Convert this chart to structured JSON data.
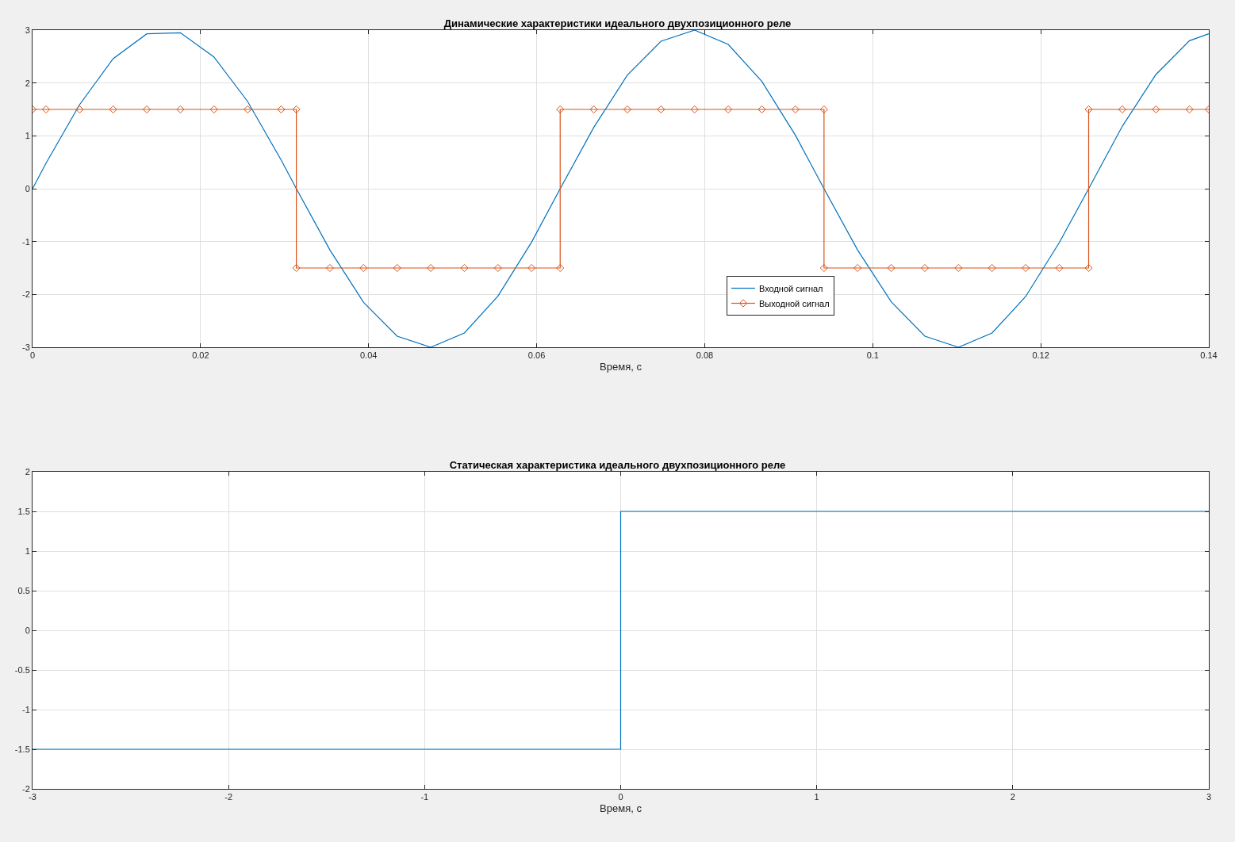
{
  "chart_data": [
    {
      "type": "line",
      "title": "Динамические характеристики идеального двухпозиционного реле",
      "xlabel": "Время, с",
      "xlim": [
        0,
        0.14
      ],
      "xticks": [
        0,
        0.02,
        0.04,
        0.06,
        0.08,
        0.1,
        0.12,
        0.14
      ],
      "ylim": [
        -3,
        3
      ],
      "yticks": [
        -3,
        -2,
        -1,
        0,
        1,
        2,
        3
      ],
      "grid": true,
      "legend": "bottom",
      "series": [
        {
          "name": "Входной сигнал",
          "color": "#0072bd",
          "marker": "none",
          "x": [
            0,
            0.0016,
            0.0056,
            0.0096,
            0.0136,
            0.0176,
            0.0216,
            0.0256,
            0.0296,
            0.0314,
            0.0354,
            0.0394,
            0.0434,
            0.0474,
            0.0514,
            0.0554,
            0.0594,
            0.0628,
            0.0668,
            0.0708,
            0.0748,
            0.0788,
            0.0828,
            0.0868,
            0.0908,
            0.0942,
            0.0982,
            0.1022,
            0.1062,
            0.1102,
            0.1142,
            0.1182,
            0.1222,
            0.1257,
            0.1297,
            0.1337,
            0.1377,
            0.14
          ],
          "values": [
            0,
            0.48,
            1.59,
            2.46,
            2.93,
            2.95,
            2.49,
            1.65,
            0.54,
            0,
            -1.16,
            -2.15,
            -2.79,
            -3,
            -2.73,
            -2.03,
            -1.01,
            0,
            1.16,
            2.15,
            2.79,
            3,
            2.73,
            2.03,
            1.01,
            0,
            -1.16,
            -2.14,
            -2.79,
            -3,
            -2.73,
            -2.04,
            -1.02,
            0,
            1.18,
            2.16,
            2.8,
            2.93
          ]
        },
        {
          "name": "Выходной сигнал",
          "color": "#d95319",
          "marker": "diamond",
          "x": [
            0,
            0.0016,
            0.0056,
            0.0096,
            0.0136,
            0.0176,
            0.0216,
            0.0256,
            0.0296,
            0.0314,
            0.0314,
            0.0354,
            0.0394,
            0.0434,
            0.0474,
            0.0514,
            0.0554,
            0.0594,
            0.0628,
            0.0628,
            0.0668,
            0.0708,
            0.0748,
            0.0788,
            0.0828,
            0.0868,
            0.0908,
            0.0942,
            0.0942,
            0.0982,
            0.1022,
            0.1062,
            0.1102,
            0.1142,
            0.1182,
            0.1222,
            0.1257,
            0.1257,
            0.1297,
            0.1337,
            0.1377,
            0.14
          ],
          "values": [
            1.5,
            1.5,
            1.5,
            1.5,
            1.5,
            1.5,
            1.5,
            1.5,
            1.5,
            1.5,
            -1.5,
            -1.5,
            -1.5,
            -1.5,
            -1.5,
            -1.5,
            -1.5,
            -1.5,
            -1.5,
            1.5,
            1.5,
            1.5,
            1.5,
            1.5,
            1.5,
            1.5,
            1.5,
            1.5,
            -1.5,
            -1.5,
            -1.5,
            -1.5,
            -1.5,
            -1.5,
            -1.5,
            -1.5,
            -1.5,
            1.5,
            1.5,
            1.5,
            1.5,
            1.5
          ]
        }
      ]
    },
    {
      "type": "line",
      "title": "Статическая характеристика идеального двухпозиционного реле",
      "xlabel": "Время, с",
      "xlim": [
        -3,
        3
      ],
      "xticks": [
        -3,
        -2,
        -1,
        0,
        1,
        2,
        3
      ],
      "ylim": [
        -2,
        2
      ],
      "yticks": [
        -2,
        -1.5,
        -1,
        -0.5,
        0,
        0.5,
        1,
        1.5,
        2
      ],
      "grid": true,
      "series": [
        {
          "color": "#0072bd",
          "x": [
            -3,
            0,
            0,
            3
          ],
          "values": [
            -1.5,
            -1.5,
            1.5,
            1.5
          ]
        }
      ]
    }
  ]
}
